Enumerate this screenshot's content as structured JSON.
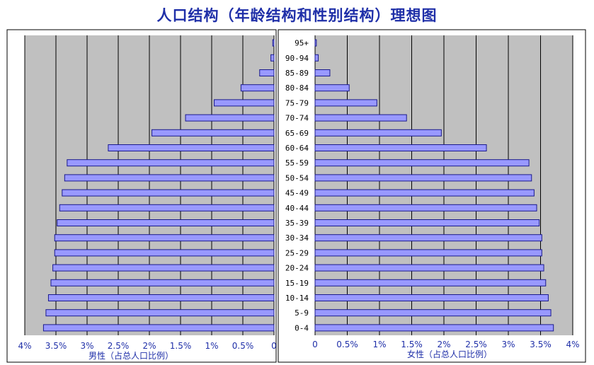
{
  "title": "人口结构（年龄结构和性别结构）理想图",
  "chart_data": {
    "type": "bar",
    "title": "人口结构（年龄结构和性别结构）理想图",
    "categories": [
      "0-4",
      "5-9",
      "10-14",
      "15-19",
      "20-24",
      "25-29",
      "30-34",
      "35-39",
      "40-44",
      "45-49",
      "50-54",
      "55-59",
      "60-64",
      "65-69",
      "70-74",
      "75-79",
      "80-84",
      "85-89",
      "90-94",
      "95+"
    ],
    "series": [
      {
        "name": "男性（占总人口比例）",
        "side": "left",
        "values": [
          3.7,
          3.66,
          3.62,
          3.58,
          3.55,
          3.52,
          3.52,
          3.48,
          3.44,
          3.4,
          3.36,
          3.32,
          2.66,
          1.96,
          1.42,
          0.96,
          0.53,
          0.23,
          0.05,
          0.02
        ]
      },
      {
        "name": "女性（占总人口比例）",
        "side": "right",
        "values": [
          3.7,
          3.66,
          3.62,
          3.58,
          3.55,
          3.52,
          3.52,
          3.48,
          3.44,
          3.4,
          3.36,
          3.32,
          2.66,
          1.96,
          1.42,
          0.96,
          0.53,
          0.23,
          0.05,
          0.02
        ]
      }
    ],
    "xlabel_left": "男性（占总人口比例）",
    "xlabel_right": "女性（占总人口比例）",
    "left_ticks": [
      "4%",
      "3.5%",
      "3%",
      "2.5%",
      "2%",
      "1.5%",
      "1%",
      "0.5%",
      "0"
    ],
    "right_ticks": [
      "0",
      "0.5%",
      "1%",
      "1.5%",
      "2%",
      "2.5%",
      "3%",
      "3.5%",
      "4%"
    ],
    "xlim": [
      0,
      4
    ],
    "grid": true,
    "colors": {
      "bar_fill": "#9999ff",
      "bar_stroke": "#1a1a8c",
      "plot_bg": "#c0c0c0",
      "tick_text": "#1f2fa8",
      "title": "#1f2fa8"
    }
  }
}
